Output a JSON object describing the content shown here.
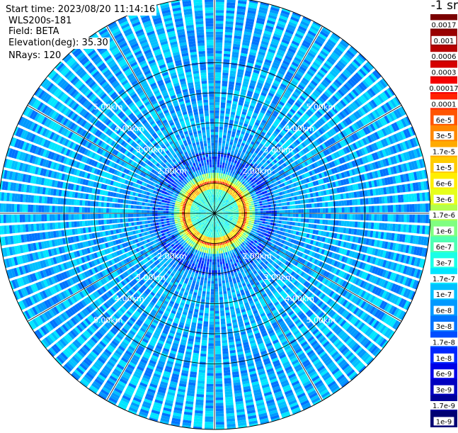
{
  "info": {
    "start_time": "Start time: 2023/08/20 11:14:16",
    "instrument": "WLS200s-181",
    "field": "Field: BETA",
    "elevation": "Elevation(deg): 35.30",
    "nrays": "NRays: 120"
  },
  "chart_data": {
    "type": "heatmap",
    "subtype": "polar-ppi",
    "field": "BETA",
    "elevation_deg": 35.3,
    "n_rays": 120,
    "range_rings_km": [
      1,
      2,
      3,
      4,
      5
    ],
    "ring_labels": [
      "",
      "2.00km",
      "3.00km",
      "4.00km",
      "5.00km"
    ],
    "max_range_km": 5.8,
    "spokes": 12,
    "colorbar": {
      "units": "-1 sr",
      "labels": [
        "0.0017",
        "0.001",
        "0.0006",
        "0.0003",
        "0.00017",
        "0.0001",
        "6e-5",
        "3e-5",
        "1.7e-5",
        "1e-5",
        "6e-6",
        "3e-6",
        "1.7e-6",
        "1e-6",
        "6e-7",
        "3e-7",
        "1.7e-7",
        "1e-7",
        "6e-8",
        "3e-8",
        "1.7e-8",
        "1e-8",
        "6e-9",
        "3e-9",
        "1.7e-9",
        "1e-9"
      ],
      "colors": [
        "#7a0000",
        "#990000",
        "#b80000",
        "#d60000",
        "#f50000",
        "#ff2200",
        "#ff5500",
        "#ff8800",
        "#ffaa00",
        "#ffcc00",
        "#ffee00",
        "#e6ff1a",
        "#b3ff4d",
        "#80ff80",
        "#4dffb3",
        "#1affe6",
        "#00e6ff",
        "#00c0ff",
        "#0099ff",
        "#0073ff",
        "#004dff",
        "#0026ff",
        "#0000e6",
        "#0000c0",
        "#000099",
        "#000073"
      ]
    },
    "profile_note_km": [
      {
        "range_km": 0.0,
        "level": "~3e-7 to 6e-7"
      },
      {
        "range_km": 0.7,
        "level": "~3e-7"
      },
      {
        "range_km": 1.0,
        "level": "~6e-5 to 1e-4"
      },
      {
        "range_km": 1.2,
        "level": "~3e-6"
      },
      {
        "range_km": 1.6,
        "level": "~3e-8"
      },
      {
        "range_km": 2.5,
        "level": "~6e-8 to 1e-7"
      },
      {
        "range_km": 5.0,
        "level": "~1e-7 to 1.7e-7"
      }
    ]
  }
}
